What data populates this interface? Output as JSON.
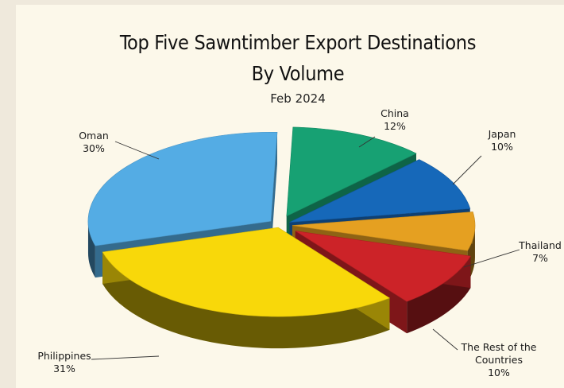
{
  "chart_data": {
    "type": "pie",
    "title": [
      "Top Five Sawntimber Export Destinations",
      "By Volume"
    ],
    "subtitle": "Feb 2024",
    "style": "3d-exploded",
    "slices": [
      {
        "name": "China",
        "label": "12%",
        "value": 12,
        "color": "#17a173"
      },
      {
        "name": "Japan",
        "label": "10%",
        "value": 10,
        "color": "#1668b9"
      },
      {
        "name": "Thailand",
        "label": "7%",
        "value": 7,
        "color": "#e5a021"
      },
      {
        "name": "The Rest of the Countries",
        "label": "10%",
        "value": 10,
        "color": "#cc2328"
      },
      {
        "name": "Philippines",
        "label": "31%",
        "value": 31,
        "color": "#f8d80a"
      },
      {
        "name": "Oman",
        "label": "30%",
        "value": 30,
        "color": "#54ace4"
      }
    ]
  }
}
